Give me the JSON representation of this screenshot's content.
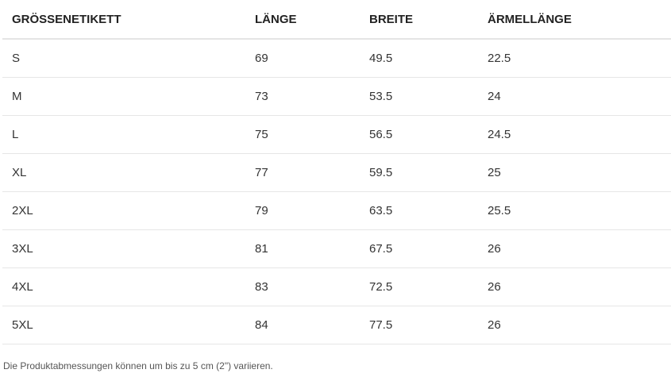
{
  "table": {
    "headers": [
      "GRÖSSENETIKETT",
      "LÄNGE",
      "BREITE",
      "ÄRMELLÄNGE"
    ],
    "rows": [
      [
        "S",
        "69",
        "49.5",
        "22.5"
      ],
      [
        "M",
        "73",
        "53.5",
        "24"
      ],
      [
        "L",
        "75",
        "56.5",
        "24.5"
      ],
      [
        "XL",
        "77",
        "59.5",
        "25"
      ],
      [
        "2XL",
        "79",
        "63.5",
        "25.5"
      ],
      [
        "3XL",
        "81",
        "67.5",
        "26"
      ],
      [
        "4XL",
        "83",
        "72.5",
        "26"
      ],
      [
        "5XL",
        "84",
        "77.5",
        "26"
      ]
    ]
  },
  "footnote": "Die Produktabmessungen können um bis zu 5 cm (2\") variieren."
}
